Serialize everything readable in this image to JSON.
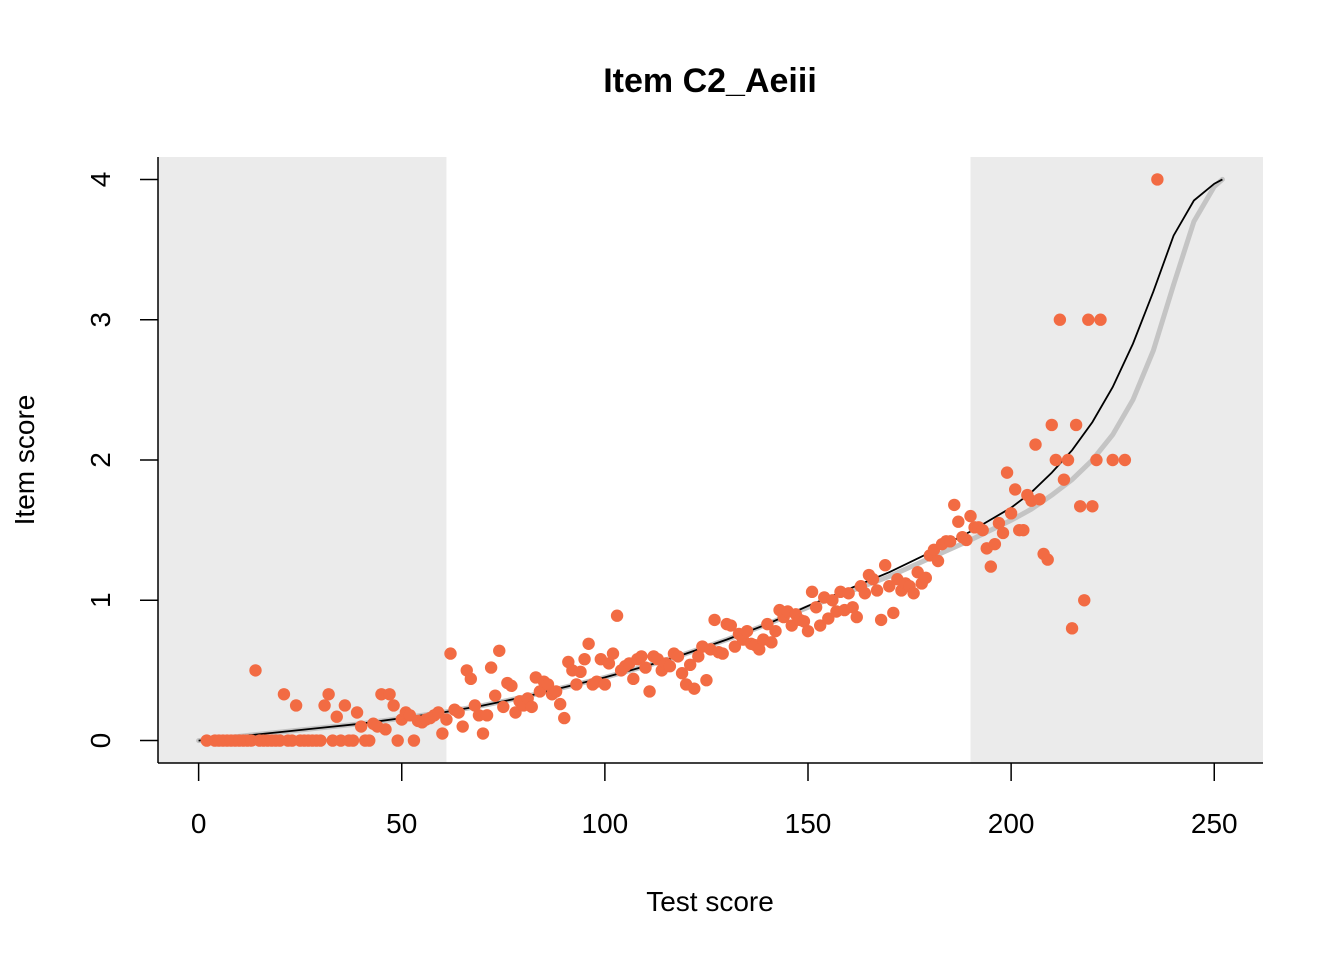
{
  "chart_data": {
    "type": "scatter",
    "title": "Item C2_Aeiii",
    "xlabel": "Test score",
    "ylabel": "Item score",
    "xlim": [
      -10,
      262
    ],
    "ylim": [
      -0.16,
      4.16
    ],
    "x_ticks": [
      0,
      50,
      100,
      150,
      200,
      250
    ],
    "x_tick_labels": [
      "0",
      "50",
      "100",
      "150",
      "200",
      "250"
    ],
    "y_ticks": [
      0,
      1,
      2,
      3,
      4
    ],
    "y_tick_labels": [
      "0",
      "1",
      "2",
      "3",
      "4"
    ],
    "grid": false,
    "shaded_regions": [
      {
        "from": -10,
        "to": 61,
        "color": "#ebebeb"
      },
      {
        "from": 190,
        "to": 262,
        "color": "#ebebeb"
      }
    ],
    "colors": {
      "points": "#f26b43",
      "fit_line": "#000000",
      "reference_curve": "#c4c4c4"
    },
    "points": [
      [
        2,
        0
      ],
      [
        4,
        0
      ],
      [
        5,
        0
      ],
      [
        6,
        0
      ],
      [
        7,
        0
      ],
      [
        8,
        0
      ],
      [
        9,
        0
      ],
      [
        10,
        0
      ],
      [
        11,
        0
      ],
      [
        12,
        0
      ],
      [
        13,
        0
      ],
      [
        14,
        0.5
      ],
      [
        15,
        0
      ],
      [
        16,
        0
      ],
      [
        17,
        0
      ],
      [
        18,
        0
      ],
      [
        19,
        0
      ],
      [
        20,
        0
      ],
      [
        21,
        0.33
      ],
      [
        22,
        0
      ],
      [
        23,
        0
      ],
      [
        24,
        0.25
      ],
      [
        25,
        0
      ],
      [
        26,
        0
      ],
      [
        27,
        0
      ],
      [
        28,
        0
      ],
      [
        29,
        0
      ],
      [
        30,
        0
      ],
      [
        31,
        0.25
      ],
      [
        32,
        0.33
      ],
      [
        33,
        0
      ],
      [
        34,
        0.17
      ],
      [
        35,
        0
      ],
      [
        36,
        0.25
      ],
      [
        37,
        0
      ],
      [
        38,
        0
      ],
      [
        39,
        0.2
      ],
      [
        40,
        0.1
      ],
      [
        41,
        0
      ],
      [
        42,
        0
      ],
      [
        43,
        0.12
      ],
      [
        44,
        0.1
      ],
      [
        45,
        0.33
      ],
      [
        46,
        0.08
      ],
      [
        47,
        0.33
      ],
      [
        48,
        0.25
      ],
      [
        49,
        0
      ],
      [
        50,
        0.15
      ],
      [
        51,
        0.2
      ],
      [
        52,
        0.18
      ],
      [
        53,
        0
      ],
      [
        54,
        0.14
      ],
      [
        55,
        0.13
      ],
      [
        56,
        0.15
      ],
      [
        57,
        0.16
      ],
      [
        58,
        0.18
      ],
      [
        59,
        0.2
      ],
      [
        60,
        0.05
      ],
      [
        61,
        0.15
      ],
      [
        62,
        0.62
      ],
      [
        63,
        0.22
      ],
      [
        64,
        0.2
      ],
      [
        65,
        0.1
      ],
      [
        66,
        0.5
      ],
      [
        67,
        0.44
      ],
      [
        68,
        0.25
      ],
      [
        69,
        0.18
      ],
      [
        70,
        0.05
      ],
      [
        71,
        0.18
      ],
      [
        72,
        0.52
      ],
      [
        73,
        0.32
      ],
      [
        74,
        0.64
      ],
      [
        75,
        0.24
      ],
      [
        76,
        0.41
      ],
      [
        77,
        0.39
      ],
      [
        78,
        0.2
      ],
      [
        79,
        0.28
      ],
      [
        80,
        0.25
      ],
      [
        81,
        0.3
      ],
      [
        82,
        0.24
      ],
      [
        83,
        0.45
      ],
      [
        84,
        0.35
      ],
      [
        85,
        0.42
      ],
      [
        86,
        0.4
      ],
      [
        87,
        0.33
      ],
      [
        88,
        0.35
      ],
      [
        89,
        0.26
      ],
      [
        90,
        0.16
      ],
      [
        91,
        0.56
      ],
      [
        92,
        0.5
      ],
      [
        93,
        0.4
      ],
      [
        94,
        0.49
      ],
      [
        95,
        0.58
      ],
      [
        96,
        0.69
      ],
      [
        97,
        0.4
      ],
      [
        98,
        0.42
      ],
      [
        99,
        0.58
      ],
      [
        100,
        0.4
      ],
      [
        101,
        0.55
      ],
      [
        102,
        0.62
      ],
      [
        103,
        0.89
      ],
      [
        104,
        0.5
      ],
      [
        105,
        0.53
      ],
      [
        106,
        0.55
      ],
      [
        107,
        0.44
      ],
      [
        108,
        0.58
      ],
      [
        109,
        0.6
      ],
      [
        110,
        0.52
      ],
      [
        111,
        0.35
      ],
      [
        112,
        0.6
      ],
      [
        113,
        0.58
      ],
      [
        114,
        0.5
      ],
      [
        115,
        0.55
      ],
      [
        116,
        0.53
      ],
      [
        117,
        0.62
      ],
      [
        118,
        0.6
      ],
      [
        119,
        0.48
      ],
      [
        120,
        0.4
      ],
      [
        121,
        0.54
      ],
      [
        122,
        0.37
      ],
      [
        123,
        0.6
      ],
      [
        124,
        0.67
      ],
      [
        125,
        0.43
      ],
      [
        126,
        0.65
      ],
      [
        127,
        0.86
      ],
      [
        128,
        0.63
      ],
      [
        129,
        0.62
      ],
      [
        130,
        0.83
      ],
      [
        131,
        0.82
      ],
      [
        132,
        0.67
      ],
      [
        133,
        0.76
      ],
      [
        134,
        0.72
      ],
      [
        135,
        0.78
      ],
      [
        136,
        0.69
      ],
      [
        137,
        0.68
      ],
      [
        138,
        0.65
      ],
      [
        139,
        0.72
      ],
      [
        140,
        0.83
      ],
      [
        141,
        0.7
      ],
      [
        142,
        0.78
      ],
      [
        143,
        0.93
      ],
      [
        144,
        0.88
      ],
      [
        145,
        0.92
      ],
      [
        146,
        0.82
      ],
      [
        147,
        0.9
      ],
      [
        148,
        0.86
      ],
      [
        149,
        0.85
      ],
      [
        150,
        0.78
      ],
      [
        151,
        1.06
      ],
      [
        152,
        0.95
      ],
      [
        153,
        0.82
      ],
      [
        154,
        1.02
      ],
      [
        155,
        0.87
      ],
      [
        156,
        1.0
      ],
      [
        157,
        0.92
      ],
      [
        158,
        1.06
      ],
      [
        159,
        0.93
      ],
      [
        160,
        1.05
      ],
      [
        161,
        0.95
      ],
      [
        162,
        0.88
      ],
      [
        163,
        1.1
      ],
      [
        164,
        1.05
      ],
      [
        165,
        1.18
      ],
      [
        166,
        1.15
      ],
      [
        167,
        1.07
      ],
      [
        168,
        0.86
      ],
      [
        169,
        1.25
      ],
      [
        170,
        1.1
      ],
      [
        171,
        0.91
      ],
      [
        172,
        1.15
      ],
      [
        173,
        1.07
      ],
      [
        174,
        1.12
      ],
      [
        175,
        1.1
      ],
      [
        176,
        1.05
      ],
      [
        177,
        1.2
      ],
      [
        178,
        1.12
      ],
      [
        179,
        1.16
      ],
      [
        180,
        1.32
      ],
      [
        181,
        1.36
      ],
      [
        182,
        1.28
      ],
      [
        183,
        1.4
      ],
      [
        184,
        1.42
      ],
      [
        185,
        1.42
      ],
      [
        186,
        1.68
      ],
      [
        187,
        1.56
      ],
      [
        188,
        1.45
      ],
      [
        189,
        1.43
      ],
      [
        190,
        1.6
      ],
      [
        191,
        1.52
      ],
      [
        192,
        1.52
      ],
      [
        193,
        1.5
      ],
      [
        194,
        1.37
      ],
      [
        195,
        1.24
      ],
      [
        196,
        1.4
      ],
      [
        197,
        1.55
      ],
      [
        198,
        1.48
      ],
      [
        199,
        1.91
      ],
      [
        200,
        1.62
      ],
      [
        201,
        1.79
      ],
      [
        202,
        1.5
      ],
      [
        203,
        1.5
      ],
      [
        204,
        1.75
      ],
      [
        205,
        1.71
      ],
      [
        206,
        2.11
      ],
      [
        207,
        1.72
      ],
      [
        208,
        1.33
      ],
      [
        209,
        1.29
      ],
      [
        210,
        2.25
      ],
      [
        211,
        2.0
      ],
      [
        212,
        3.0
      ],
      [
        213,
        1.86
      ],
      [
        214,
        2.0
      ],
      [
        215,
        0.8
      ],
      [
        216,
        2.25
      ],
      [
        217,
        1.67
      ],
      [
        218,
        1.0
      ],
      [
        219,
        3.0
      ],
      [
        220,
        1.67
      ],
      [
        221,
        2.0
      ],
      [
        222,
        3.0
      ],
      [
        225,
        2.0
      ],
      [
        228,
        2.0
      ],
      [
        236,
        4.0
      ]
    ],
    "fit_curve": [
      [
        0,
        0
      ],
      [
        10,
        0.03
      ],
      [
        20,
        0.06
      ],
      [
        30,
        0.09
      ],
      [
        40,
        0.12
      ],
      [
        50,
        0.16
      ],
      [
        60,
        0.2
      ],
      [
        70,
        0.25
      ],
      [
        80,
        0.31
      ],
      [
        90,
        0.38
      ],
      [
        100,
        0.45
      ],
      [
        110,
        0.53
      ],
      [
        120,
        0.62
      ],
      [
        130,
        0.72
      ],
      [
        140,
        0.83
      ],
      [
        150,
        0.96
      ],
      [
        160,
        1.08
      ],
      [
        170,
        1.2
      ],
      [
        180,
        1.34
      ],
      [
        190,
        1.49
      ],
      [
        200,
        1.66
      ],
      [
        205,
        1.77
      ],
      [
        210,
        1.91
      ],
      [
        215,
        2.07
      ],
      [
        220,
        2.27
      ],
      [
        225,
        2.52
      ],
      [
        230,
        2.83
      ],
      [
        235,
        3.2
      ],
      [
        240,
        3.6
      ],
      [
        245,
        3.85
      ],
      [
        250,
        3.97
      ],
      [
        252,
        4.0
      ]
    ],
    "reference_curve": [
      [
        0,
        0
      ],
      [
        10,
        0.03
      ],
      [
        20,
        0.06
      ],
      [
        30,
        0.09
      ],
      [
        40,
        0.12
      ],
      [
        50,
        0.16
      ],
      [
        60,
        0.2
      ],
      [
        70,
        0.25
      ],
      [
        80,
        0.31
      ],
      [
        90,
        0.38
      ],
      [
        100,
        0.45
      ],
      [
        110,
        0.53
      ],
      [
        120,
        0.62
      ],
      [
        130,
        0.72
      ],
      [
        140,
        0.83
      ],
      [
        150,
        0.95
      ],
      [
        160,
        1.06
      ],
      [
        170,
        1.17
      ],
      [
        180,
        1.3
      ],
      [
        190,
        1.43
      ],
      [
        200,
        1.57
      ],
      [
        205,
        1.65
      ],
      [
        210,
        1.75
      ],
      [
        215,
        1.86
      ],
      [
        220,
        2.0
      ],
      [
        225,
        2.18
      ],
      [
        230,
        2.43
      ],
      [
        235,
        2.78
      ],
      [
        240,
        3.25
      ],
      [
        245,
        3.7
      ],
      [
        250,
        3.95
      ],
      [
        252,
        4.0
      ]
    ]
  }
}
